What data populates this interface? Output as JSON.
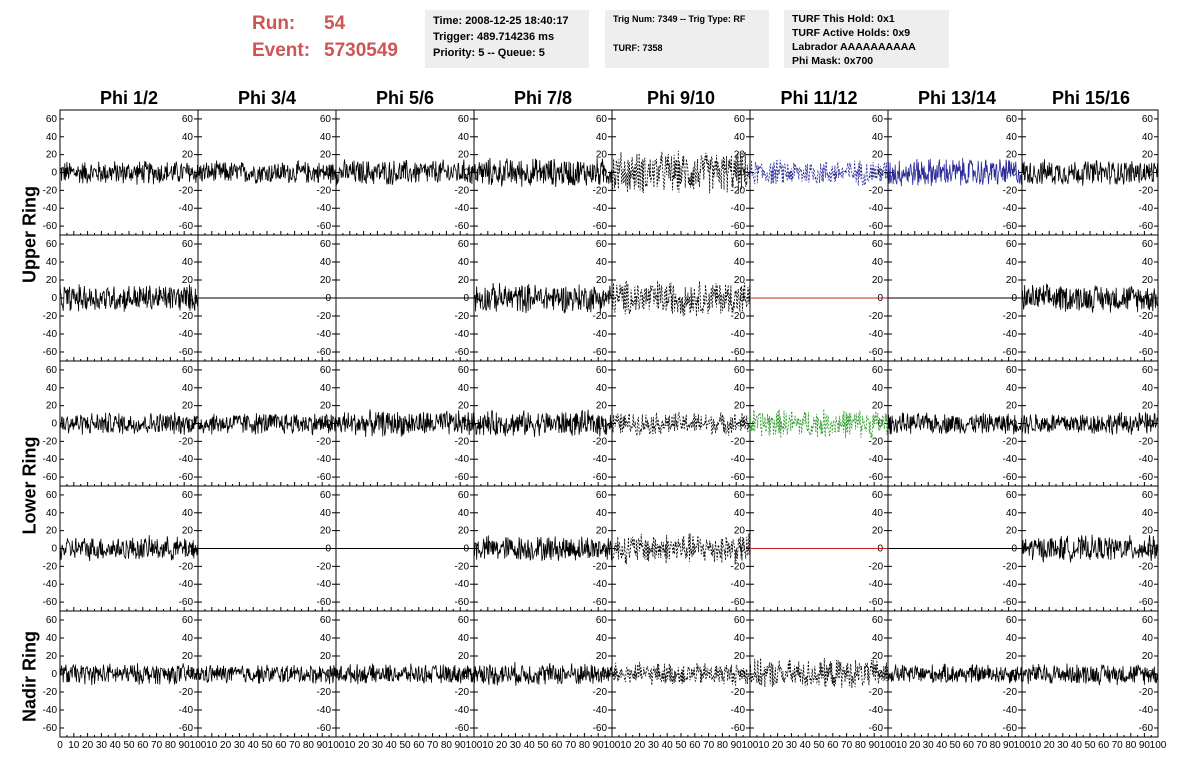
{
  "header": {
    "run_label": "Run:",
    "run_value": "54",
    "event_label": "Event:",
    "event_value": "5730549",
    "time": "Time: 2008-12-25 18:40:17",
    "trigger": "Trigger: 489.714236 ms",
    "priority": "Priority: 5 -- Queue: 5",
    "trig_num": "Trig Num: 7349 -- Trig Type: RF",
    "turf": "TURF: 7358",
    "turf_this_hold": "TURF This Hold: 0x1",
    "turf_active_holds": "TURF Active Holds: 0x9",
    "labrador": "Labrador AAAAAAAAAA",
    "phi_mask": "Phi Mask: 0x700"
  },
  "columns": [
    "Phi 1/2",
    "Phi 3/4",
    "Phi 5/6",
    "Phi 7/8",
    "Phi 9/10",
    "Phi 11/12",
    "Phi 13/14",
    "Phi 15/16"
  ],
  "row_labels": [
    "Upper Ring",
    "Lower Ring",
    "Nadir Ring"
  ],
  "colors": {
    "waveform": "#000000",
    "blue_trace": "#2a2a9a",
    "green_trace": "#2e9a2e",
    "flat_red": "#cc2222",
    "run_text": "#cc5555",
    "info_bg": "#eeeeee"
  },
  "chart_data": {
    "type": "line",
    "ylim": [
      -70,
      70
    ],
    "yticks": [
      -60,
      -40,
      -20,
      0,
      20,
      40,
      60
    ],
    "xlim": [
      0,
      100
    ],
    "xticks": [
      0,
      10,
      20,
      30,
      40,
      50,
      60,
      70,
      80,
      90,
      100
    ],
    "xtick_labels_shown": [
      "0",
      "10",
      "20",
      "30",
      "40",
      "50",
      "60",
      "70",
      "80",
      "90",
      "100"
    ],
    "panels": [
      [
        {
          "style": "solid",
          "color": "waveform",
          "amp": 15
        },
        {
          "style": "solid",
          "color": "waveform",
          "amp": 14
        },
        {
          "style": "solid",
          "color": "waveform",
          "amp": 16
        },
        {
          "style": "solid",
          "color": "waveform",
          "amp": 18
        },
        {
          "style": "dashed",
          "color": "waveform",
          "amp": 26
        },
        {
          "style": "dashed",
          "color": "blue_trace",
          "amp": 16
        },
        {
          "style": "solid",
          "color": "blue_trace",
          "amp": 18
        },
        {
          "style": "solid",
          "color": "waveform",
          "amp": 16
        }
      ],
      [
        {
          "style": "solid",
          "color": "waveform",
          "amp": 17
        },
        {
          "style": "flat",
          "color": "waveform",
          "amp": 0
        },
        {
          "style": "flat",
          "color": "waveform",
          "amp": 0
        },
        {
          "style": "solid",
          "color": "waveform",
          "amp": 18
        },
        {
          "style": "dashed",
          "color": "waveform",
          "amp": 22
        },
        {
          "style": "flat",
          "color": "flat_red",
          "amp": 0
        },
        {
          "style": "flat",
          "color": "waveform",
          "amp": 0
        },
        {
          "style": "solid",
          "color": "waveform",
          "amp": 17
        }
      ],
      [
        {
          "style": "solid",
          "color": "waveform",
          "amp": 14
        },
        {
          "style": "solid",
          "color": "waveform",
          "amp": 14
        },
        {
          "style": "solid",
          "color": "waveform",
          "amp": 16
        },
        {
          "style": "solid",
          "color": "waveform",
          "amp": 16
        },
        {
          "style": "dashed",
          "color": "waveform",
          "amp": 14
        },
        {
          "style": "dashed",
          "color": "green_trace",
          "amp": 18
        },
        {
          "style": "solid",
          "color": "waveform",
          "amp": 13
        },
        {
          "style": "solid",
          "color": "waveform",
          "amp": 14
        }
      ],
      [
        {
          "style": "solid",
          "color": "waveform",
          "amp": 15
        },
        {
          "style": "flat",
          "color": "waveform",
          "amp": 0
        },
        {
          "style": "flat",
          "color": "waveform",
          "amp": 0
        },
        {
          "style": "solid",
          "color": "waveform",
          "amp": 16
        },
        {
          "style": "dashed",
          "color": "waveform",
          "amp": 19
        },
        {
          "style": "flat",
          "color": "flat_red",
          "amp": 0
        },
        {
          "style": "flat",
          "color": "waveform",
          "amp": 0
        },
        {
          "style": "solid",
          "color": "waveform",
          "amp": 16
        }
      ],
      [
        {
          "style": "solid",
          "color": "waveform",
          "amp": 13
        },
        {
          "style": "solid",
          "color": "waveform",
          "amp": 12
        },
        {
          "style": "solid",
          "color": "waveform",
          "amp": 12
        },
        {
          "style": "solid",
          "color": "waveform",
          "amp": 14
        },
        {
          "style": "dashed",
          "color": "waveform",
          "amp": 14
        },
        {
          "style": "dashed",
          "color": "waveform",
          "amp": 18
        },
        {
          "style": "solid",
          "color": "waveform",
          "amp": 12
        },
        {
          "style": "solid",
          "color": "waveform",
          "amp": 13
        }
      ]
    ]
  }
}
